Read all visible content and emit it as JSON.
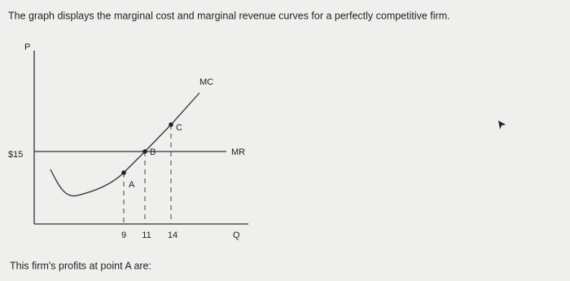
{
  "question": "The graph displays the marginal cost and marginal revenue curves for a perfectly competitive firm.",
  "graph": {
    "y_axis_label": "P",
    "x_axis_label": "Q",
    "price_label": "$15",
    "curve_labels": {
      "mc": "MC",
      "mr": "MR"
    },
    "points": [
      {
        "label": "A"
      },
      {
        "label": "B"
      },
      {
        "label": "C"
      }
    ],
    "quantity_ticks": [
      "9",
      "11",
      "14"
    ]
  },
  "prompt": "This firm's profits at point A are:"
}
